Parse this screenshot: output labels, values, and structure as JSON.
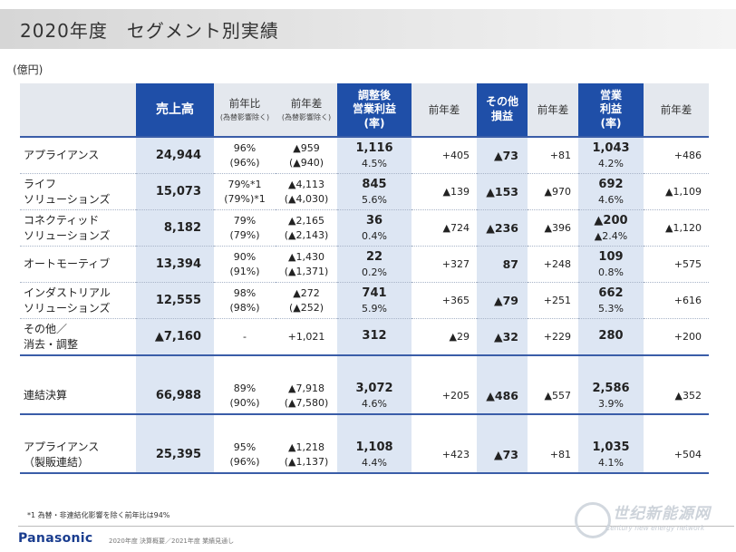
{
  "title": "2020年度　セグメント別実績",
  "unit": "(億円)",
  "headers": {
    "sales": "売上高",
    "yoy_ratio": "前年比",
    "yoy_ratio_sub": "(為替影響除く)",
    "yoy_diff": "前年差",
    "yoy_diff_sub": "(為替影響除く)",
    "adj_op": "調整後\n営業利益\n(率)",
    "adj_op_diff": "前年差",
    "other": "その他\n損益",
    "other_diff": "前年差",
    "op": "営業\n利益\n(率)",
    "op_diff": "前年差"
  },
  "rows": [
    {
      "name": "アプライアンス",
      "sales": "24,944",
      "ratio": "96%",
      "ratio_ex": "(96%)",
      "diff": "▲959",
      "diff_ex": "(▲940)",
      "adj": "1,116",
      "adj_rate": "4.5%",
      "adj_diff": "+405",
      "other": "▲73",
      "other_diff": "+81",
      "op": "1,043",
      "op_rate": "4.2%",
      "op_diff": "+486"
    },
    {
      "name": "ライフ\nソリューションズ",
      "sales": "15,073",
      "ratio": "79%*1",
      "ratio_ex": "(79%)*1",
      "diff": "▲4,113",
      "diff_ex": "(▲4,030)",
      "adj": "845",
      "adj_rate": "5.6%",
      "adj_diff": "▲139",
      "other": "▲153",
      "other_diff": "▲970",
      "op": "692",
      "op_rate": "4.6%",
      "op_diff": "▲1,109"
    },
    {
      "name": "コネクティッド\nソリューションズ",
      "sales": "8,182",
      "ratio": "79%",
      "ratio_ex": "(79%)",
      "diff": "▲2,165",
      "diff_ex": "(▲2,143)",
      "adj": "36",
      "adj_rate": "0.4%",
      "adj_diff": "▲724",
      "other": "▲236",
      "other_diff": "▲396",
      "op": "▲200",
      "op_rate": "▲2.4%",
      "op_diff": "▲1,120"
    },
    {
      "name": "オートモーティブ",
      "sales": "13,394",
      "ratio": "90%",
      "ratio_ex": "(91%)",
      "diff": "▲1,430",
      "diff_ex": "(▲1,371)",
      "adj": "22",
      "adj_rate": "0.2%",
      "adj_diff": "+327",
      "other": "87",
      "other_diff": "+248",
      "op": "109",
      "op_rate": "0.8%",
      "op_diff": "+575"
    },
    {
      "name": "インダストリアル\nソリューションズ",
      "sales": "12,555",
      "ratio": "98%",
      "ratio_ex": "(98%)",
      "diff": "▲272",
      "diff_ex": "(▲252)",
      "adj": "741",
      "adj_rate": "5.9%",
      "adj_diff": "+365",
      "other": "▲79",
      "other_diff": "+251",
      "op": "662",
      "op_rate": "5.3%",
      "op_diff": "+616"
    },
    {
      "name": "その他／\n消去・調整",
      "sales": "▲7,160",
      "ratio": "-",
      "ratio_ex": "",
      "diff": "+1,021",
      "diff_ex": "",
      "adj": "312",
      "adj_rate": "",
      "adj_diff": "▲29",
      "other": "▲32",
      "other_diff": "+229",
      "op": "280",
      "op_rate": "",
      "op_diff": "+200"
    }
  ],
  "total": {
    "name": "連結決算",
    "sales": "66,988",
    "ratio": "89%",
    "ratio_ex": "(90%)",
    "diff": "▲7,918",
    "diff_ex": "(▲7,580)",
    "adj": "3,072",
    "adj_rate": "4.6%",
    "adj_diff": "+205",
    "other": "▲486",
    "other_diff": "▲557",
    "op": "2,586",
    "op_rate": "3.9%",
    "op_diff": "▲352"
  },
  "appliance": {
    "name": "アプライアンス\n（製販連結）",
    "sales": "25,395",
    "ratio": "95%",
    "ratio_ex": "(96%)",
    "diff": "▲1,218",
    "diff_ex": "(▲1,137)",
    "adj": "1,108",
    "adj_rate": "4.4%",
    "adj_diff": "+423",
    "other": "▲73",
    "other_diff": "+81",
    "op": "1,035",
    "op_rate": "4.1%",
    "op_diff": "+504"
  },
  "footnote": "*1 為替・非連結化影響を除く前年比は94%",
  "logo": "Panasonic",
  "bottom_note": "2020年度 決算概要／2021年度 業績見通し",
  "watermark": "世纪新能源网",
  "watermark_sub": "Century new energy network"
}
